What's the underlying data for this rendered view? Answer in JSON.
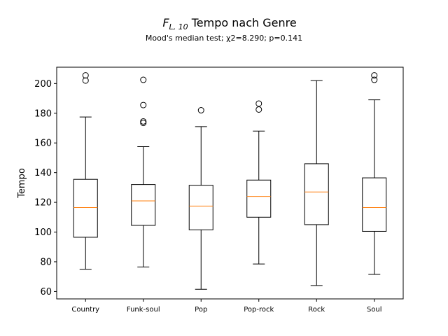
{
  "chart_data": {
    "type": "box",
    "title_math_base": "F",
    "title_math_sub": "L, 10",
    "title_text": " Tempo nach Genre",
    "subtitle": "Mood's median test; χ2=8.290; p=0.141",
    "xlabel": "",
    "ylabel": "Tempo",
    "ylim": [
      55,
      211
    ],
    "yticks": [
      60,
      80,
      100,
      120,
      140,
      160,
      180,
      200
    ],
    "grid": false,
    "categories": [
      "Country",
      "Funk-soul",
      "Pop",
      "Pop-rock",
      "Rock",
      "Soul"
    ],
    "boxes": [
      {
        "whislo": 75,
        "q1": 96.5,
        "med": 116.5,
        "q3": 135.5,
        "whishi": 177.5,
        "fliers": [
          202,
          205.5
        ]
      },
      {
        "whislo": 76.5,
        "q1": 104.5,
        "med": 121,
        "q3": 132,
        "whishi": 157.5,
        "fliers": [
          173.5,
          174.5,
          185.5,
          202.5
        ]
      },
      {
        "whislo": 61.5,
        "q1": 101.5,
        "med": 117.5,
        "q3": 131.5,
        "whishi": 171,
        "fliers": [
          182
        ]
      },
      {
        "whislo": 78.5,
        "q1": 110,
        "med": 124,
        "q3": 135,
        "whishi": 168,
        "fliers": [
          182.5,
          186.5
        ]
      },
      {
        "whislo": 64,
        "q1": 105,
        "med": 127,
        "q3": 146,
        "whishi": 202,
        "fliers": []
      },
      {
        "whislo": 71.5,
        "q1": 100.5,
        "med": 116.5,
        "q3": 136.5,
        "whishi": 189,
        "fliers": [
          202.5,
          205.5
        ]
      }
    ],
    "colors": {
      "box": "#000000",
      "median": "#ff7f0e",
      "flier": "#000000",
      "background": "#ffffff"
    }
  }
}
